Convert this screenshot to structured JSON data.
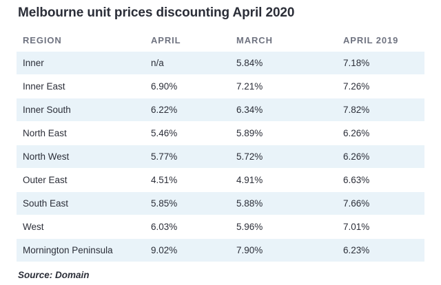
{
  "title": "Melbourne unit prices discounting April 2020",
  "table": {
    "headers": [
      "REGION",
      "APRIL",
      "MARCH",
      "APRIL 2019"
    ],
    "rows": [
      [
        "Inner",
        "n/a",
        "5.84%",
        "7.18%"
      ],
      [
        "Inner East",
        "6.90%",
        "7.21%",
        "7.26%"
      ],
      [
        "Inner South",
        "6.22%",
        "6.34%",
        "7.82%"
      ],
      [
        "North East",
        "5.46%",
        "5.89%",
        "6.26%"
      ],
      [
        "North West",
        "5.77%",
        "5.72%",
        "6.26%"
      ],
      [
        "Outer East",
        "4.51%",
        "4.91%",
        "6.63%"
      ],
      [
        "South East",
        "5.85%",
        "5.88%",
        "7.66%"
      ],
      [
        "West",
        "6.03%",
        "5.96%",
        "7.01%"
      ],
      [
        "Mornington Peninsula",
        "9.02%",
        "7.90%",
        "6.23%"
      ]
    ]
  },
  "source": "Source: Domain",
  "colors": {
    "row_stripe": "#e9f3f9",
    "text": "#2b2e38",
    "header_text": "#6f7380"
  }
}
